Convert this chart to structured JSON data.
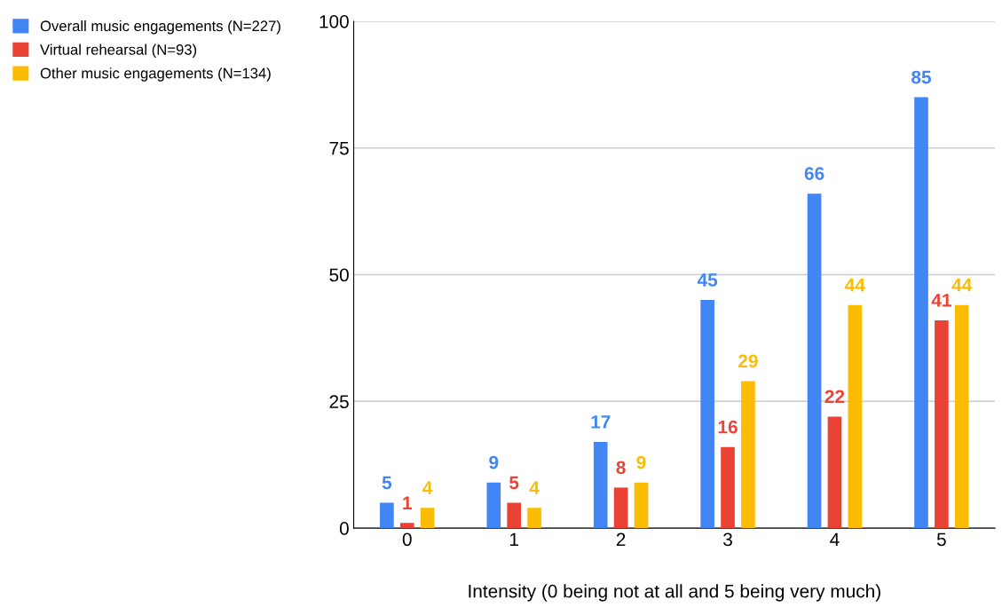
{
  "chart_data": {
    "type": "bar",
    "xlabel": "Intensity (0 being not at all and 5 being very much)",
    "categories": [
      "0",
      "1",
      "2",
      "3",
      "4",
      "5"
    ],
    "series": [
      {
        "name": "Overall music engagements (N=227)",
        "color": "#4285f4",
        "values": [
          5,
          9,
          17,
          45,
          66,
          85
        ]
      },
      {
        "name": "Virtual rehearsal (N=93)",
        "color": "#ea4335",
        "values": [
          1,
          5,
          8,
          16,
          22,
          41
        ]
      },
      {
        "name": "Other music engagements (N=134)",
        "color": "#fbbc04",
        "values": [
          4,
          4,
          9,
          29,
          44,
          44
        ]
      }
    ],
    "ylim": [
      0,
      100
    ],
    "yticks": [
      0,
      25,
      50,
      75,
      100
    ],
    "grid": "y",
    "legend": "top left",
    "data_labels": true
  }
}
